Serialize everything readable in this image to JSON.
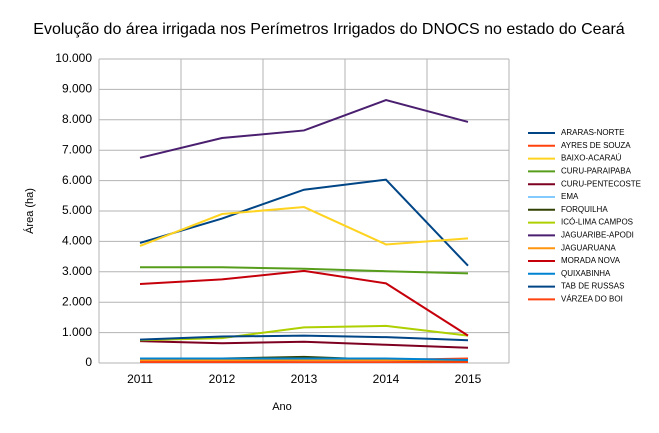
{
  "chart_data": {
    "type": "line",
    "title": "Evolução do área irrigada nos Perímetros Irrigados do DNOCS no estado do Ceará",
    "x_label": "Ano",
    "y_label": "Área (ha)",
    "categories": [
      "2011",
      "2012",
      "2013",
      "2014",
      "2015"
    ],
    "ylim": [
      0,
      10000
    ],
    "yticks": [
      0,
      {
        "value": 1000,
        "label": "1.000"
      },
      {
        "value": 2000,
        "label": "2.000"
      },
      {
        "value": 3000,
        "label": "3.000"
      },
      {
        "value": 4000,
        "label": "4.000"
      },
      {
        "value": 5000,
        "label": "5.000"
      },
      {
        "value": 6000,
        "label": "6.000"
      },
      {
        "value": 7000,
        "label": "7.000"
      },
      {
        "value": 8000,
        "label": "8.000"
      },
      {
        "value": 9000,
        "label": "9.000"
      },
      {
        "value": 10000,
        "label": "10.000"
      }
    ],
    "grid": true,
    "series": [
      {
        "name": "ARARAS-NORTE",
        "color": "#004586",
        "values": [
          3950,
          4750,
          5700,
          6030,
          3200
        ]
      },
      {
        "name": "AYRES DE SOUZA",
        "color": "#ff420e",
        "values": [
          50,
          50,
          100,
          100,
          150
        ]
      },
      {
        "name": "BAIXO-ACARAÚ",
        "color": "#ffd320",
        "values": [
          3850,
          4900,
          5130,
          3900,
          4100
        ]
      },
      {
        "name": "CURU-PARAIPABA",
        "color": "#579d1c",
        "values": [
          3150,
          3150,
          3100,
          3020,
          2950
        ]
      },
      {
        "name": "CURU-PENTECOSTE",
        "color": "#7e0021",
        "values": [
          720,
          650,
          700,
          600,
          500
        ]
      },
      {
        "name": "EMA",
        "color": "#83caff",
        "values": [
          20,
          20,
          20,
          20,
          20
        ]
      },
      {
        "name": "FORQUILHA",
        "color": "#314004",
        "values": [
          150,
          150,
          200,
          100,
          50
        ]
      },
      {
        "name": "ICÓ-LIMA CAMPOS",
        "color": "#aecf00",
        "values": [
          750,
          820,
          1170,
          1220,
          900
        ]
      },
      {
        "name": "JAGUARIBE-APODI",
        "color": "#4b1f6f",
        "values": [
          6750,
          7400,
          7650,
          8650,
          7930
        ]
      },
      {
        "name": "JAGUARUANA",
        "color": "#ff950e",
        "values": [
          100,
          100,
          100,
          100,
          100
        ]
      },
      {
        "name": "MORADA NOVA",
        "color": "#c5000b",
        "values": [
          2600,
          2750,
          3030,
          2620,
          900
        ]
      },
      {
        "name": "QUIXABINHA",
        "color": "#0084d1",
        "values": [
          150,
          150,
          150,
          150,
          100
        ]
      },
      {
        "name": "TAB DE RUSSAS",
        "color": "#004586",
        "values": [
          770,
          870,
          900,
          850,
          750
        ]
      },
      {
        "name": "VÁRZEA DO BOI",
        "color": "#ff420e",
        "values": [
          30,
          30,
          30,
          30,
          30
        ]
      }
    ]
  }
}
